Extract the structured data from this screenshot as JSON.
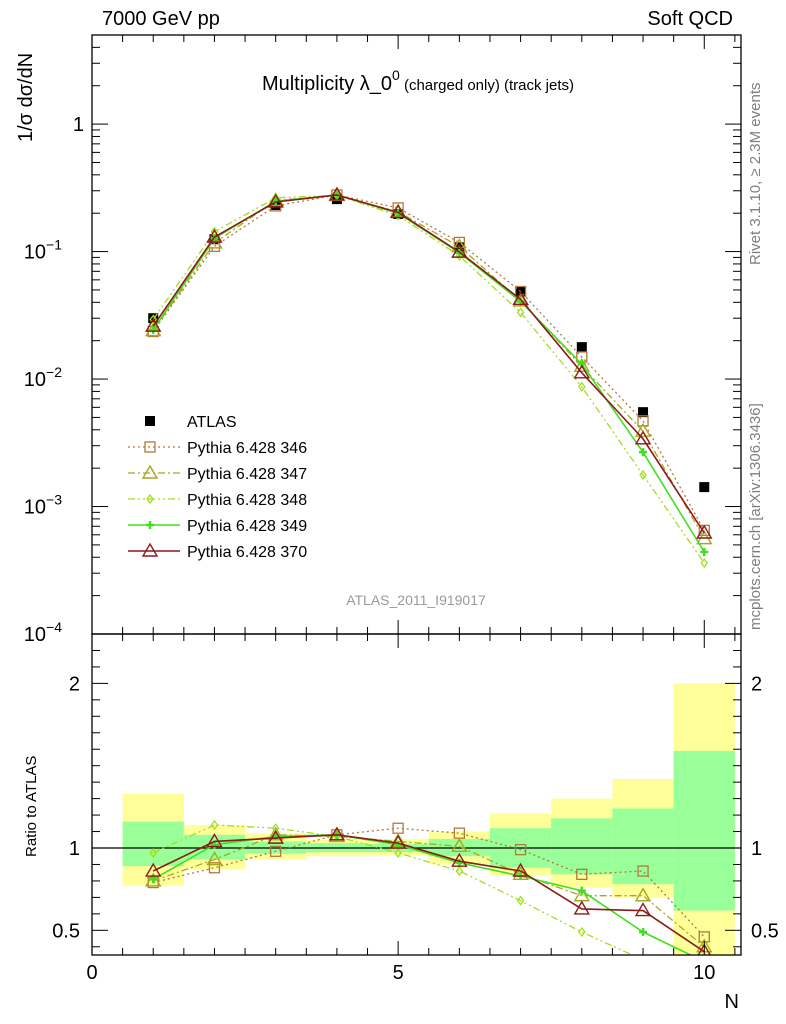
{
  "header": {
    "left": "7000 GeV pp",
    "right": "Soft QCD"
  },
  "side_labels": {
    "rivet": "Rivet 3.1.10, ≥ 2.3M events",
    "mcplots": "mcplots.cern.ch [arXiv:1306.3436]"
  },
  "chart_data": [
    {
      "type": "scatter",
      "panel": "main",
      "title": "Multiplicity λ_0⁰ (charged only) (track jets)",
      "title_parts": {
        "main": "Multiplicity λ_0",
        "sup": "0",
        "sub": " (charged only) (track jets)"
      },
      "ylabel": "1/σ dσ/dN",
      "xlabel": "N",
      "watermark": "ATLAS_2011_I919017",
      "xlim": [
        0,
        10.6
      ],
      "ylim": [
        0.0001,
        5
      ],
      "yscale": "log",
      "ytick_labels": [
        {
          "value": 1,
          "base": "1",
          "exp": ""
        },
        {
          "value": 0.1,
          "base": "10",
          "exp": "−1"
        },
        {
          "value": 0.01,
          "base": "10",
          "exp": "−2"
        },
        {
          "value": 0.001,
          "base": "10",
          "exp": "−3"
        },
        {
          "value": 0.0001,
          "base": "10",
          "exp": "−4"
        }
      ],
      "legend_position": "bottom-left",
      "x": [
        1,
        2,
        3,
        4,
        5,
        6,
        7,
        8,
        9,
        10
      ],
      "series": [
        {
          "name": "ATLAS",
          "color": "#000000",
          "marker": "filled-square",
          "line": "none",
          "values": [
            0.03,
            0.125,
            0.232,
            0.258,
            0.197,
            0.108,
            0.049,
            0.0178,
            0.0055,
            0.00142
          ]
        },
        {
          "name": "Pythia 6.428 346",
          "color": "#b07a3a",
          "marker": "open-square",
          "line": "dotted",
          "values": [
            0.0236,
            0.11,
            0.228,
            0.278,
            0.22,
            0.118,
            0.0486,
            0.0149,
            0.0047,
            0.00065
          ]
        },
        {
          "name": "Pythia 6.428 347",
          "color": "#a8a820",
          "marker": "open-triangle",
          "line": "dashdot",
          "values": [
            0.024,
            0.117,
            0.252,
            0.276,
            0.205,
            0.1095,
            0.041,
            0.0126,
            0.0039,
            0.00056
          ]
        },
        {
          "name": "Pythia 6.428 348",
          "color": "#a0e020",
          "marker": "open-diamond",
          "line": "dashdotdot",
          "values": [
            0.0293,
            0.143,
            0.264,
            0.276,
            0.192,
            0.0925,
            0.0333,
            0.0087,
            0.00177,
            0.00036
          ]
        },
        {
          "name": "Pythia 6.428 349",
          "color": "#40e020",
          "marker": "cross",
          "line": "solid",
          "values": [
            0.0243,
            0.127,
            0.248,
            0.278,
            0.2,
            0.098,
            0.0406,
            0.0131,
            0.00267,
            0.00044
          ]
        },
        {
          "name": "Pythia 6.428 370",
          "color": "#8b1a1a",
          "marker": "open-triangle",
          "line": "solid",
          "values": [
            0.026,
            0.13,
            0.245,
            0.278,
            0.203,
            0.099,
            0.0422,
            0.0112,
            0.0034,
            0.00062
          ]
        }
      ]
    },
    {
      "type": "line",
      "panel": "ratio",
      "ylabel": "Ratio to ATLAS",
      "xlabel": "N",
      "xlim": [
        0,
        10.6
      ],
      "ylim": [
        0.35,
        2.3
      ],
      "yticks": [
        0.5,
        1,
        2
      ],
      "ytick_labels": [
        "0.5",
        "1",
        "2"
      ],
      "xticks": [
        0,
        5,
        10
      ],
      "xtick_labels": [
        "0",
        "5",
        "10"
      ],
      "reference_line": 1,
      "bands": {
        "outer_color": "#ffff99",
        "inner_color": "#99ff99",
        "bins": [
          {
            "x0": 0.5,
            "x1": 1.5,
            "outer": [
              0.77,
              1.33
            ],
            "inner": [
              0.89,
              1.16
            ]
          },
          {
            "x0": 1.5,
            "x1": 2.5,
            "outer": [
              0.87,
              1.14
            ],
            "inner": [
              0.93,
              1.08
            ]
          },
          {
            "x0": 2.5,
            "x1": 3.5,
            "outer": [
              0.93,
              1.09
            ],
            "inner": [
              0.965,
              1.04
            ]
          },
          {
            "x0": 3.5,
            "x1": 4.5,
            "outer": [
              0.95,
              1.05
            ],
            "inner": [
              0.975,
              1.03
            ]
          },
          {
            "x0": 4.5,
            "x1": 5.5,
            "outer": [
              0.955,
              1.055
            ],
            "inner": [
              0.975,
              1.025
            ]
          },
          {
            "x0": 5.5,
            "x1": 6.5,
            "outer": [
              0.9,
              1.1
            ],
            "inner": [
              0.95,
              1.055
            ]
          },
          {
            "x0": 6.5,
            "x1": 7.5,
            "outer": [
              0.83,
              1.21
            ],
            "inner": [
              0.88,
              1.12
            ]
          },
          {
            "x0": 7.5,
            "x1": 8.5,
            "outer": [
              0.76,
              1.3
            ],
            "inner": [
              0.84,
              1.18
            ]
          },
          {
            "x0": 8.5,
            "x1": 9.5,
            "outer": [
              0.7,
              1.42
            ],
            "inner": [
              0.78,
              1.24
            ]
          },
          {
            "x0": 9.5,
            "x1": 10.5,
            "outer": [
              0.35,
              2.0
            ],
            "inner": [
              0.62,
              1.59
            ]
          }
        ]
      },
      "x": [
        1,
        2,
        3,
        4,
        5,
        6,
        7,
        8,
        9,
        10
      ],
      "series": [
        {
          "name": "Pythia 6.428 346",
          "color": "#b07a3a",
          "marker": "open-square",
          "line": "dotted",
          "values": [
            0.79,
            0.88,
            0.98,
            1.08,
            1.12,
            1.09,
            0.99,
            0.84,
            0.86,
            0.46
          ]
        },
        {
          "name": "Pythia 6.428 347",
          "color": "#a8a820",
          "marker": "open-triangle",
          "line": "dashdot",
          "values": [
            0.8,
            0.93,
            1.08,
            1.07,
            1.04,
            1.01,
            0.84,
            0.71,
            0.71,
            0.4
          ]
        },
        {
          "name": "Pythia 6.428 348",
          "color": "#a0e020",
          "marker": "open-diamond",
          "line": "dashdotdot",
          "values": [
            0.97,
            1.14,
            1.12,
            1.07,
            0.97,
            0.86,
            0.68,
            0.49,
            0.32,
            0.25
          ]
        },
        {
          "name": "Pythia 6.428 349",
          "color": "#40e020",
          "marker": "cross",
          "line": "solid",
          "values": [
            0.81,
            1.02,
            1.07,
            1.08,
            1.02,
            0.91,
            0.83,
            0.74,
            0.49,
            0.31
          ]
        },
        {
          "name": "Pythia 6.428 370",
          "color": "#8b1a1a",
          "marker": "open-triangle",
          "line": "solid",
          "values": [
            0.86,
            1.04,
            1.06,
            1.08,
            1.03,
            0.92,
            0.86,
            0.63,
            0.62,
            0.37
          ]
        }
      ]
    }
  ]
}
